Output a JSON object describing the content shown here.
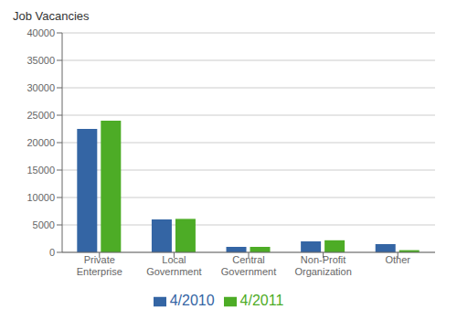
{
  "chart_data": {
    "type": "bar",
    "annotation": "Job Vacancies",
    "categories": [
      "Private\nEnterprise",
      "Local\nGovernment",
      "Central\nGovernment",
      "Non-Profit\nOrganization",
      "Other"
    ],
    "series": [
      {
        "name": "4/2010",
        "color": "#3465a4",
        "values": [
          22500,
          6000,
          1000,
          2000,
          1500
        ]
      },
      {
        "name": "4/2011",
        "color": "#4dac26",
        "values": [
          24000,
          6100,
          1000,
          2200,
          400
        ]
      }
    ],
    "ylim": [
      0,
      40000
    ],
    "yticks": [
      0,
      5000,
      10000,
      15000,
      20000,
      25000,
      30000,
      35000,
      40000
    ],
    "grid": true,
    "legend": "bottom"
  }
}
